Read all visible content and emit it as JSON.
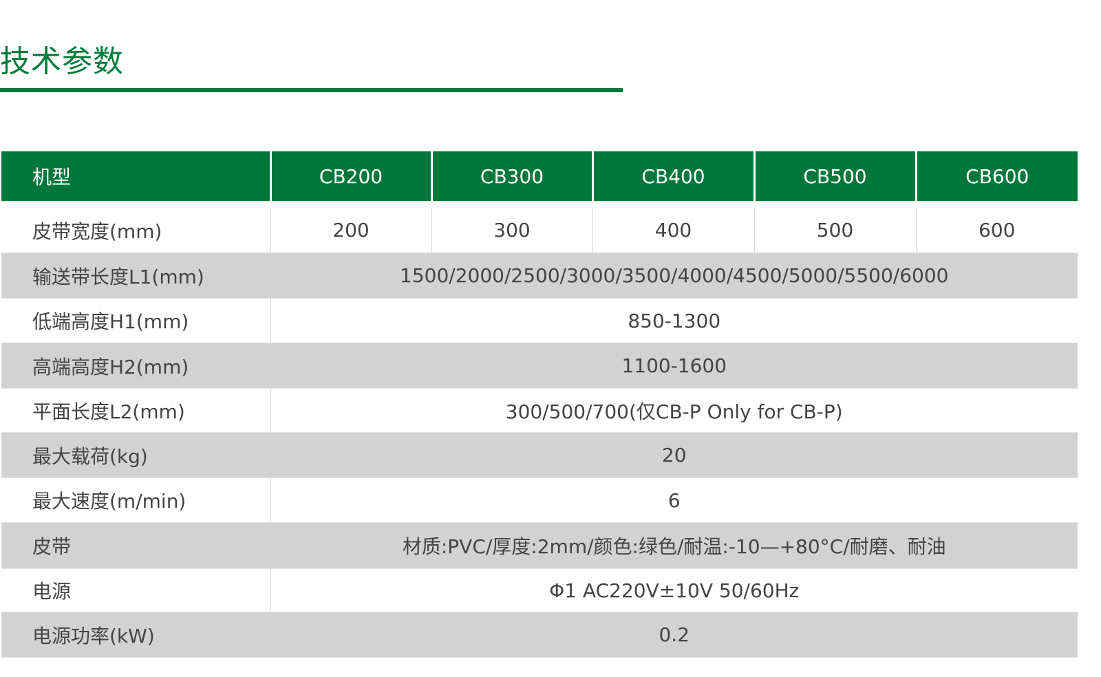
{
  "title": "技术参数",
  "colors": {
    "accent": "#00773a",
    "stripe": "#d2d2d2"
  },
  "table": {
    "header": [
      "机型",
      "CB200",
      "CB300",
      "CB400",
      "CB500",
      "CB600"
    ],
    "rows": [
      {
        "label": "皮带宽度(mm)",
        "values": [
          "200",
          "300",
          "400",
          "500",
          "600"
        ]
      },
      {
        "label": "输送带长度L1(mm)",
        "values": [
          "1500/2000/2500/3000/3500/4000/4500/5000/5500/6000"
        ]
      },
      {
        "label": "低端高度H1(mm)",
        "values": [
          "850-1300"
        ]
      },
      {
        "label": "高端高度H2(mm)",
        "values": [
          "1100-1600"
        ]
      },
      {
        "label": "平面长度L2(mm)",
        "values": [
          "300/500/700(仅CB-P Only for CB-P)"
        ]
      },
      {
        "label": "最大载荷(kg)",
        "values": [
          "20"
        ]
      },
      {
        "label": "最大速度(m/min)",
        "values": [
          "6"
        ]
      },
      {
        "label": "皮带",
        "values": [
          "材质:PVC/厚度:2mm/颜色:绿色/耐温:-10—+80°C/耐磨、耐油"
        ]
      },
      {
        "label": "电源",
        "values": [
          "Φ1  AC220V±10V  50/60Hz"
        ]
      },
      {
        "label": "电源功率(kW)",
        "values": [
          "0.2"
        ]
      }
    ]
  }
}
